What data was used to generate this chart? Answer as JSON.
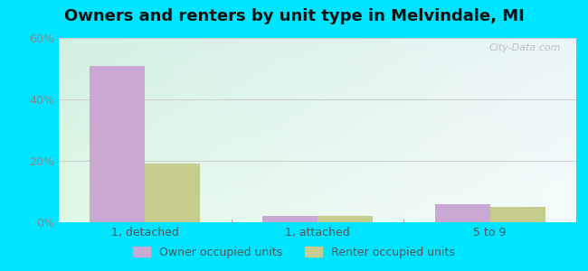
{
  "title": "Owners and renters by unit type in Melvindale, MI",
  "categories": [
    "1, detached",
    "1, attached",
    "5 to 9"
  ],
  "owner_values": [
    51,
    2,
    6
  ],
  "renter_values": [
    19,
    2,
    5
  ],
  "owner_color": "#c9a8d4",
  "renter_color": "#c5cc8e",
  "ylim": [
    0,
    60
  ],
  "yticks": [
    0,
    20,
    40,
    60
  ],
  "ytick_labels": [
    "0%",
    "20%",
    "40%",
    "60%"
  ],
  "bg_color_topleft": [
    210,
    240,
    225
  ],
  "bg_color_topright": [
    235,
    245,
    248
  ],
  "bg_color_bottomleft": [
    225,
    248,
    230
  ],
  "bg_color_bottomright": [
    245,
    252,
    252
  ],
  "outer_bg": "#00e5ff",
  "bar_width": 0.32,
  "legend_owner": "Owner occupied units",
  "legend_renter": "Renter occupied units",
  "title_fontsize": 13,
  "watermark": "City-Data.com",
  "grid_color": "#cccccc",
  "tick_color": "#888888",
  "label_color": "#555555"
}
